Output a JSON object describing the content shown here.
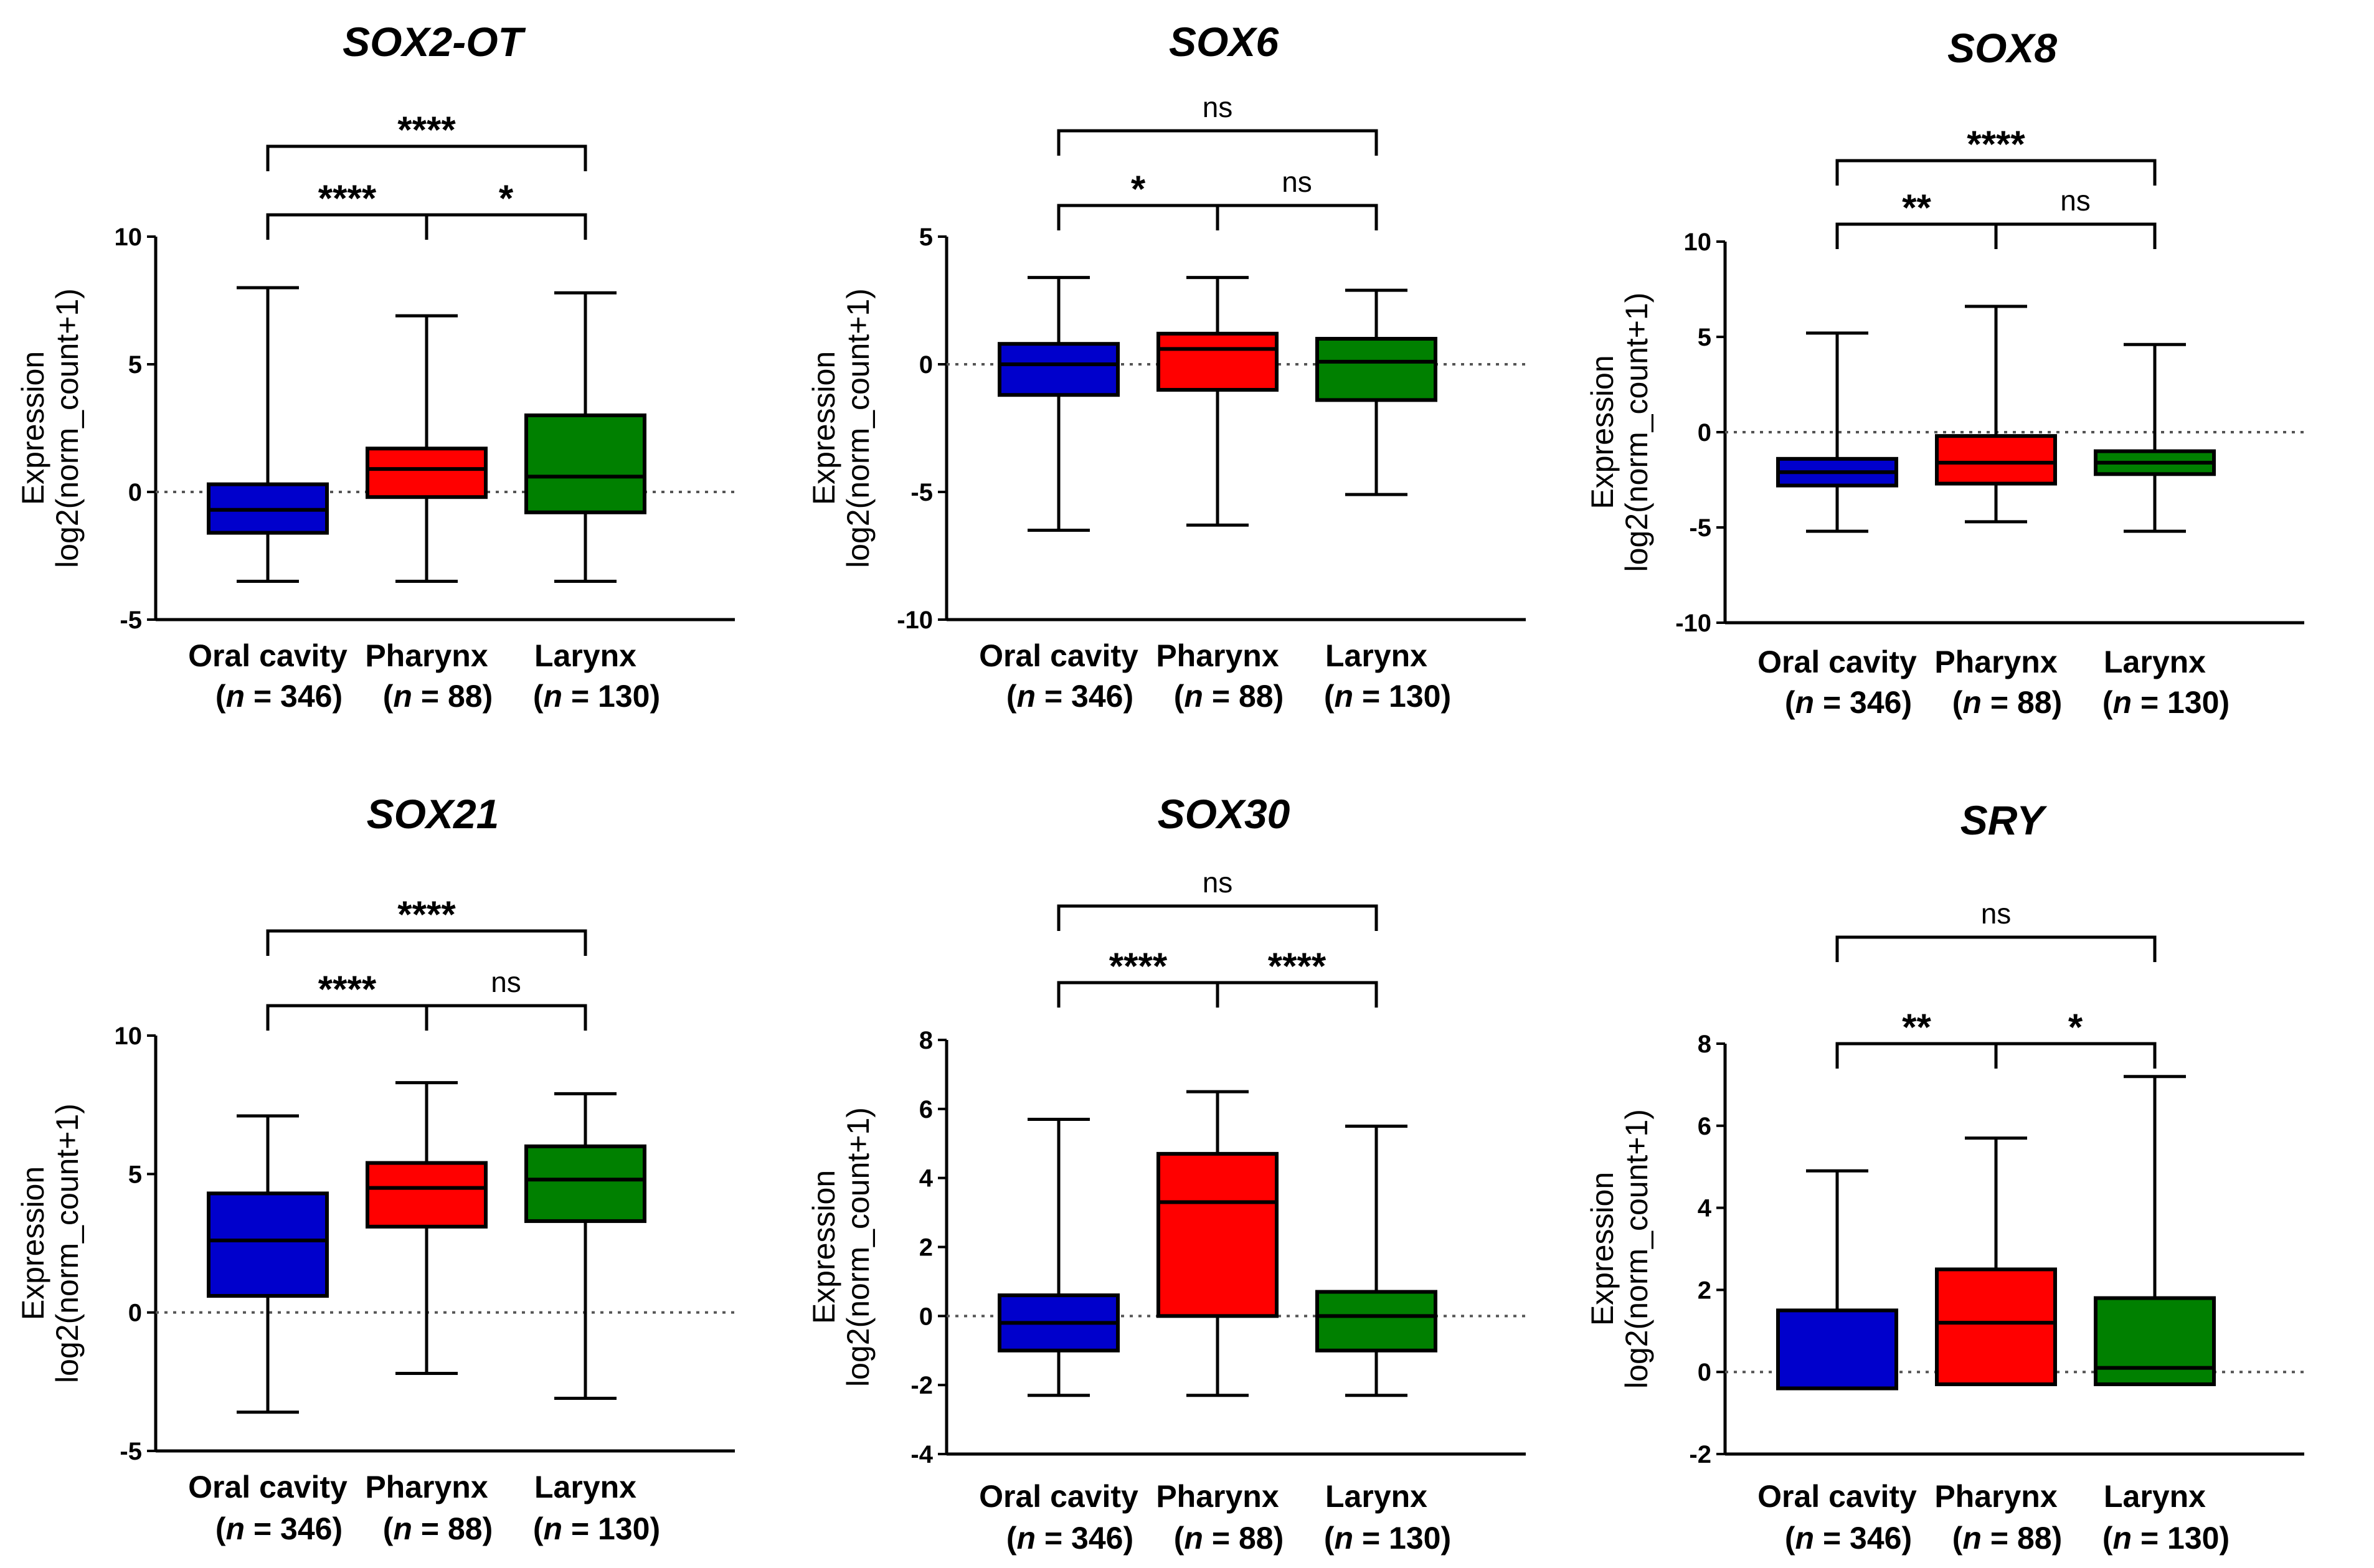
{
  "chart_data": [
    {
      "type": "box",
      "title": "SOX2-OT",
      "ylabel_line1": "Expression",
      "ylabel_line2": "log2(norm_count+1)",
      "ylim": [
        -5,
        10
      ],
      "yticks": [
        -5,
        0,
        5,
        10
      ],
      "reference_line": 0,
      "categories": [
        {
          "label": "Oral cavity",
          "n_label": "n",
          "n_value": "= 346"
        },
        {
          "label": "Pharynx",
          "n_label": "n",
          "n_value": "= 88"
        },
        {
          "label": "Larynx",
          "n_label": "n",
          "n_value": "= 130"
        }
      ],
      "boxes": [
        {
          "group": "Oral cavity",
          "color": "#0000cc",
          "min": -3.5,
          "q1": -1.6,
          "median": -0.7,
          "q3": 0.3,
          "max": 8.0
        },
        {
          "group": "Pharynx",
          "color": "#ff0000",
          "min": -3.5,
          "q1": -0.2,
          "median": 0.9,
          "q3": 1.7,
          "max": 6.9
        },
        {
          "group": "Larynx",
          "color": "#008000",
          "min": -3.5,
          "q1": -0.8,
          "median": 0.6,
          "q3": 3.0,
          "max": 7.8
        }
      ],
      "significance": [
        {
          "from": 0,
          "to": 1,
          "label": "****",
          "level": 1
        },
        {
          "from": 1,
          "to": 2,
          "label": "*",
          "level": 1
        },
        {
          "from": 0,
          "to": 2,
          "label": "****",
          "level": 2
        }
      ]
    },
    {
      "type": "box",
      "title": "SOX6",
      "ylabel_line1": "Expression",
      "ylabel_line2": "log2(norm_count+1)",
      "ylim": [
        -10,
        5
      ],
      "yticks": [
        -10,
        -5,
        0,
        5
      ],
      "reference_line": 0,
      "categories": [
        {
          "label": "Oral cavity",
          "n_label": "n",
          "n_value": "= 346"
        },
        {
          "label": "Pharynx",
          "n_label": "n",
          "n_value": "= 88"
        },
        {
          "label": "Larynx",
          "n_label": "n",
          "n_value": "= 130"
        }
      ],
      "boxes": [
        {
          "group": "Oral cavity",
          "color": "#0000cc",
          "min": -6.5,
          "q1": -1.2,
          "median": 0.0,
          "q3": 0.8,
          "max": 3.4
        },
        {
          "group": "Pharynx",
          "color": "#ff0000",
          "min": -6.3,
          "q1": -1.0,
          "median": 0.6,
          "q3": 1.2,
          "max": 3.4
        },
        {
          "group": "Larynx",
          "color": "#008000",
          "min": -5.1,
          "q1": -1.4,
          "median": 0.1,
          "q3": 1.0,
          "max": 2.9
        }
      ],
      "significance": [
        {
          "from": 0,
          "to": 1,
          "label": "*",
          "level": 1
        },
        {
          "from": 1,
          "to": 2,
          "label": "ns",
          "level": 1
        },
        {
          "from": 0,
          "to": 2,
          "label": "ns",
          "level": 2
        }
      ]
    },
    {
      "type": "box",
      "title": "SOX8",
      "ylabel_line1": "Expression",
      "ylabel_line2": "log2(norm_count+1)",
      "ylim": [
        -10,
        10
      ],
      "yticks": [
        -10,
        -5,
        0,
        5,
        10
      ],
      "reference_line": 0,
      "categories": [
        {
          "label": "Oral cavity",
          "n_label": "n",
          "n_value": "= 346"
        },
        {
          "label": "Pharynx",
          "n_label": "n",
          "n_value": "= 88"
        },
        {
          "label": "Larynx",
          "n_label": "n",
          "n_value": "= 130"
        }
      ],
      "boxes": [
        {
          "group": "Oral cavity",
          "color": "#0000cc",
          "min": -5.2,
          "q1": -2.8,
          "median": -2.1,
          "q3": -1.4,
          "max": 5.2
        },
        {
          "group": "Pharynx",
          "color": "#ff0000",
          "min": -4.7,
          "q1": -2.7,
          "median": -1.6,
          "q3": -0.2,
          "max": 6.6
        },
        {
          "group": "Larynx",
          "color": "#008000",
          "min": -5.2,
          "q1": -2.2,
          "median": -1.6,
          "q3": -1.0,
          "max": 4.6
        }
      ],
      "significance": [
        {
          "from": 0,
          "to": 1,
          "label": "**",
          "level": 1
        },
        {
          "from": 1,
          "to": 2,
          "label": "ns",
          "level": 1
        },
        {
          "from": 0,
          "to": 2,
          "label": "****",
          "level": 2
        }
      ]
    },
    {
      "type": "box",
      "title": "SOX21",
      "ylabel_line1": "Expression",
      "ylabel_line2": "log2(norm_count+1)",
      "ylim": [
        -5,
        10
      ],
      "yticks": [
        -5,
        0,
        5,
        10
      ],
      "reference_line": 0,
      "categories": [
        {
          "label": "Oral cavity",
          "n_label": "n",
          "n_value": "= 346"
        },
        {
          "label": "Pharynx",
          "n_label": "n",
          "n_value": "= 88"
        },
        {
          "label": "Larynx",
          "n_label": "n",
          "n_value": "= 130"
        }
      ],
      "boxes": [
        {
          "group": "Oral cavity",
          "color": "#0000cc",
          "min": -3.6,
          "q1": 0.6,
          "median": 2.6,
          "q3": 4.3,
          "max": 7.1
        },
        {
          "group": "Pharynx",
          "color": "#ff0000",
          "min": -2.2,
          "q1": 3.1,
          "median": 4.5,
          "q3": 5.4,
          "max": 8.3
        },
        {
          "group": "Larynx",
          "color": "#008000",
          "min": -3.1,
          "q1": 3.3,
          "median": 4.8,
          "q3": 6.0,
          "max": 7.9
        }
      ],
      "significance": [
        {
          "from": 0,
          "to": 1,
          "label": "****",
          "level": 1
        },
        {
          "from": 1,
          "to": 2,
          "label": "ns",
          "level": 1
        },
        {
          "from": 0,
          "to": 2,
          "label": "****",
          "level": 2
        }
      ]
    },
    {
      "type": "box",
      "title": "SOX30",
      "ylabel_line1": "Expression",
      "ylabel_line2": "log2(norm_count+1)",
      "ylim": [
        -4,
        8
      ],
      "yticks": [
        -4,
        -2,
        0,
        2,
        4,
        6,
        8
      ],
      "reference_line": 0,
      "categories": [
        {
          "label": "Oral cavity",
          "n_label": "n",
          "n_value": "= 346"
        },
        {
          "label": "Pharynx",
          "n_label": "n",
          "n_value": "= 88"
        },
        {
          "label": "Larynx",
          "n_label": "n",
          "n_value": "= 130"
        }
      ],
      "boxes": [
        {
          "group": "Oral cavity",
          "color": "#0000cc",
          "min": -2.3,
          "q1": -1.0,
          "median": -0.2,
          "q3": 0.6,
          "max": 5.7
        },
        {
          "group": "Pharynx",
          "color": "#ff0000",
          "min": -2.3,
          "q1": 0.0,
          "median": 3.3,
          "q3": 4.7,
          "max": 6.5
        },
        {
          "group": "Larynx",
          "color": "#008000",
          "min": -2.3,
          "q1": -1.0,
          "median": 0.0,
          "q3": 0.7,
          "max": 5.5
        }
      ],
      "significance": [
        {
          "from": 0,
          "to": 1,
          "label": "****",
          "level": 1
        },
        {
          "from": 1,
          "to": 2,
          "label": "****",
          "level": 1
        },
        {
          "from": 0,
          "to": 2,
          "label": "ns",
          "level": 2
        }
      ]
    },
    {
      "type": "box",
      "title": "SRY",
      "ylabel_line1": "Expression",
      "ylabel_line2": "log2(norm_count+1)",
      "ylim": [
        -2,
        8
      ],
      "yticks": [
        -2,
        0,
        2,
        4,
        6,
        8
      ],
      "reference_line": 0,
      "categories": [
        {
          "label": "Oral cavity",
          "n_label": "n",
          "n_value": "= 346"
        },
        {
          "label": "Pharynx",
          "n_label": "n",
          "n_value": "= 88"
        },
        {
          "label": "Larynx",
          "n_label": "n",
          "n_value": "= 130"
        }
      ],
      "boxes": [
        {
          "group": "Oral cavity",
          "color": "#0000cc",
          "min": -0.4,
          "q1": -0.4,
          "median": -0.4,
          "q3": 1.5,
          "max": 4.9
        },
        {
          "group": "Pharynx",
          "color": "#ff0000",
          "min": -0.3,
          "q1": -0.3,
          "median": 1.2,
          "q3": 2.5,
          "max": 5.7
        },
        {
          "group": "Larynx",
          "color": "#008000",
          "min": -0.3,
          "q1": -0.3,
          "median": 0.1,
          "q3": 1.8,
          "max": 7.2
        }
      ],
      "significance": [
        {
          "from": 0,
          "to": 1,
          "label": "**",
          "level": 1
        },
        {
          "from": 1,
          "to": 2,
          "label": "*",
          "level": 1
        },
        {
          "from": 0,
          "to": 2,
          "label": "ns",
          "level": 2
        }
      ]
    }
  ]
}
